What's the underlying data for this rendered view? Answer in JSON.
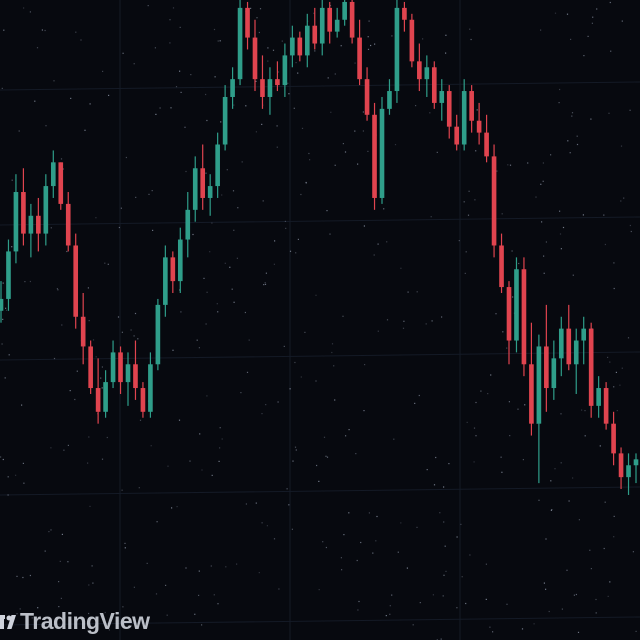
{
  "watermark": {
    "text": "TradingView"
  },
  "colors": {
    "background": "#07090f",
    "grid": "#141a26",
    "bullish": "#2f9e8a",
    "bearish": "#e0444f",
    "dust": "#9aa3b5"
  },
  "chart_data": {
    "type": "candlestick",
    "title": "",
    "xlabel": "",
    "ylabel": "",
    "grid": true,
    "ylim": [
      0,
      100
    ],
    "ohlc": [
      [
        47,
        52,
        45,
        49
      ],
      [
        49,
        59,
        47,
        57
      ],
      [
        57,
        70,
        55,
        67
      ],
      [
        67,
        71,
        58,
        60
      ],
      [
        60,
        65,
        56,
        63
      ],
      [
        63,
        66,
        57,
        60
      ],
      [
        60,
        70,
        58,
        68
      ],
      [
        68,
        74,
        66,
        72
      ],
      [
        72,
        72,
        64,
        65
      ],
      [
        65,
        67,
        57,
        58
      ],
      [
        58,
        60,
        44,
        46
      ],
      [
        46,
        50,
        38,
        41
      ],
      [
        41,
        42,
        33,
        34
      ],
      [
        34,
        39,
        28,
        30
      ],
      [
        30,
        37,
        29,
        35
      ],
      [
        35,
        42,
        34,
        40
      ],
      [
        40,
        41,
        33,
        35
      ],
      [
        35,
        40,
        31,
        38
      ],
      [
        38,
        42,
        32,
        34
      ],
      [
        34,
        35,
        29,
        30
      ],
      [
        30,
        40,
        29,
        38
      ],
      [
        38,
        49,
        37,
        48
      ],
      [
        48,
        58,
        46,
        56
      ],
      [
        56,
        57,
        50,
        52
      ],
      [
        52,
        61,
        50,
        59
      ],
      [
        59,
        67,
        56,
        64
      ],
      [
        64,
        73,
        62,
        71
      ],
      [
        71,
        75,
        64,
        66
      ],
      [
        66,
        70,
        63,
        68
      ],
      [
        68,
        77,
        66,
        75
      ],
      [
        75,
        85,
        74,
        83
      ],
      [
        83,
        88,
        81,
        86
      ],
      [
        86,
        100,
        85,
        98
      ],
      [
        98,
        99,
        91,
        93
      ],
      [
        93,
        96,
        84,
        86
      ],
      [
        86,
        90,
        81,
        83
      ],
      [
        83,
        88,
        80,
        86
      ],
      [
        86,
        89,
        84,
        85
      ],
      [
        85,
        92,
        83,
        90
      ],
      [
        90,
        95,
        88,
        93
      ],
      [
        93,
        94,
        89,
        90
      ],
      [
        90,
        97,
        88,
        95
      ],
      [
        95,
        98,
        91,
        92
      ],
      [
        92,
        100,
        90,
        98
      ],
      [
        98,
        99,
        92,
        94
      ],
      [
        94,
        98,
        93,
        96
      ],
      [
        96,
        100,
        95,
        99
      ],
      [
        99,
        100,
        92,
        93
      ],
      [
        93,
        96,
        85,
        86
      ],
      [
        86,
        88,
        79,
        80
      ],
      [
        80,
        82,
        64,
        66
      ],
      [
        66,
        83,
        65,
        81
      ],
      [
        81,
        86,
        80,
        84
      ],
      [
        84,
        100,
        82,
        98
      ],
      [
        98,
        99,
        94,
        96
      ],
      [
        96,
        97,
        88,
        89
      ],
      [
        89,
        92,
        84,
        86
      ],
      [
        86,
        90,
        83,
        88
      ],
      [
        88,
        89,
        81,
        82
      ],
      [
        82,
        86,
        79,
        84
      ],
      [
        84,
        85,
        76,
        78
      ],
      [
        78,
        80,
        74,
        75
      ],
      [
        75,
        86,
        74,
        84
      ],
      [
        84,
        85,
        77,
        79
      ],
      [
        79,
        82,
        75,
        77
      ],
      [
        77,
        80,
        72,
        73
      ],
      [
        73,
        75,
        56,
        58
      ],
      [
        58,
        60,
        50,
        51
      ],
      [
        51,
        52,
        38,
        42
      ],
      [
        42,
        56,
        40,
        54
      ],
      [
        54,
        56,
        36,
        38
      ],
      [
        38,
        45,
        26,
        28
      ],
      [
        28,
        43,
        18,
        41
      ],
      [
        41,
        48,
        30,
        34
      ],
      [
        34,
        42,
        32,
        39
      ],
      [
        39,
        46,
        36,
        44
      ],
      [
        44,
        48,
        37,
        38
      ],
      [
        38,
        44,
        33,
        42
      ],
      [
        42,
        46,
        38,
        44
      ],
      [
        44,
        45,
        29,
        31
      ],
      [
        31,
        36,
        29,
        34
      ],
      [
        34,
        35,
        27,
        28
      ],
      [
        28,
        30,
        21,
        23
      ],
      [
        23,
        24,
        17,
        19
      ],
      [
        19,
        23,
        16,
        21
      ],
      [
        21,
        23,
        18,
        22
      ]
    ]
  }
}
